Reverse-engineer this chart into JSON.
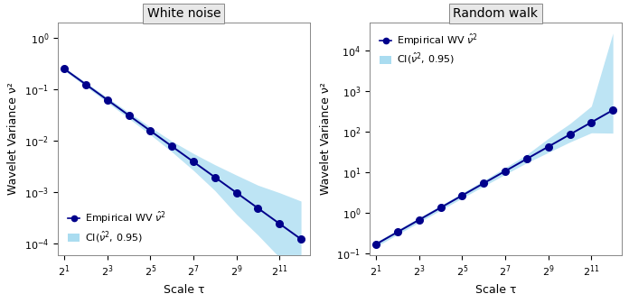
{
  "wn_title": "White noise",
  "rw_title": "Random walk",
  "xlabel": "Scale τ",
  "ylabel": "Wavelet Variance ν²",
  "line_color": "#00008B",
  "ci_color": "#87CEEB",
  "ci_alpha": 0.55,
  "tick_exponents": [
    1,
    3,
    5,
    7,
    9,
    11
  ],
  "wn_ylim": [
    6e-05,
    2.0
  ],
  "rw_ylim": [
    0.09,
    50000.0
  ],
  "wn_yticks": [
    0.0001,
    0.001,
    0.01,
    0.1,
    1.0
  ],
  "rw_yticks": [
    0.1,
    1.0,
    10.0,
    100.0,
    1000.0,
    10000.0
  ],
  "background_color": "#ffffff",
  "panel_color": "#ffffff",
  "grid_color": "#ffffff",
  "title_bg_color": "#e8e8e8",
  "spine_color": "#888888",
  "title_fontsize": 10,
  "label_fontsize": 9,
  "tick_fontsize": 8,
  "legend_fontsize": 8,
  "linewidth": 1.4,
  "markersize": 5.5
}
